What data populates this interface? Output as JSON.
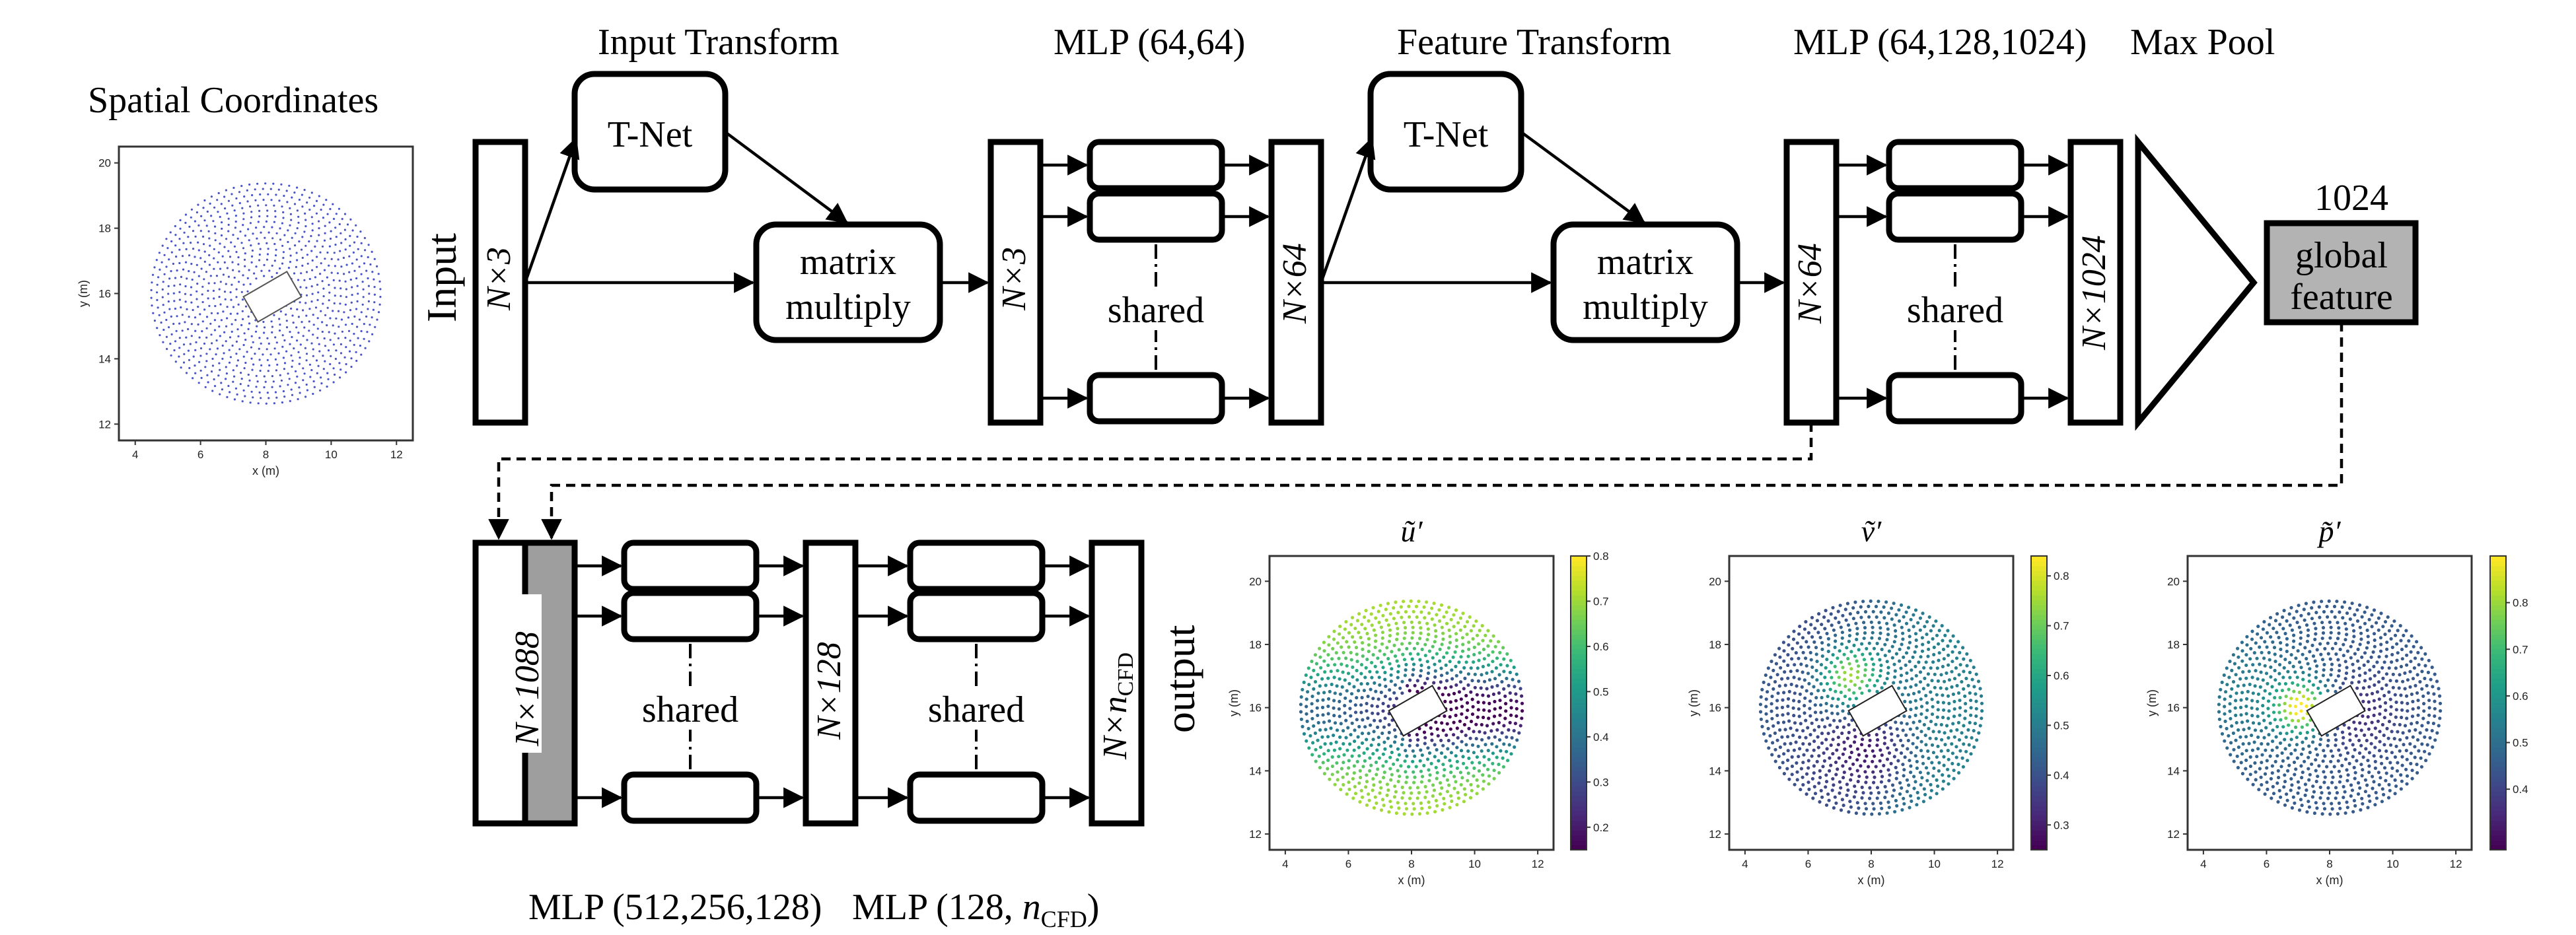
{
  "labels": {
    "spatial_coordinates": "Spatial Coordinates",
    "input": "Input",
    "output": "output",
    "input_transform": "Input Transform",
    "mlp_64_64": "MLP (64,64)",
    "feature_transform": "Feature Transform",
    "mlp_64_128_1024": "MLP (64,128,1024)",
    "max_pool": "Max Pool",
    "dim_1024": "1024",
    "tnet": "T-Net",
    "matrix": "matrix",
    "multiply": "multiply",
    "shared": "shared",
    "global": "global",
    "feature": "feature",
    "mlp_512_256_128": "MLP (512,256,128)",
    "mlp_128_ncfd_prefix": "MLP (128, ",
    "mlp_128_ncfd_var": "n",
    "mlp_128_ncfd_sub": "CFD",
    "mlp_128_ncfd_suffix": ")"
  },
  "dims": {
    "n3_a": "N×3",
    "n3_b": "N×3",
    "n64_a": "N×64",
    "n64_b": "N×64",
    "n1024": "N×1024",
    "n1088": "N×1088",
    "n128": "N×128",
    "nncfd_main": "N×n",
    "nncfd_sub": "CFD"
  },
  "colors": {
    "global_feature_fill": "#b3b3b3",
    "concat_fill": "#9e9e9e",
    "input_points": "#4a55c8",
    "colormap": "viridis"
  },
  "chart_data": [
    {
      "type": "scatter",
      "title": "",
      "xlabel": "x (m)",
      "ylabel": "y (m)",
      "xlim": [
        3.5,
        12.5
      ],
      "ylim": [
        11.5,
        20.5
      ],
      "xticks": [
        4,
        6,
        8,
        10,
        12
      ],
      "yticks": [
        12,
        14,
        16,
        18,
        20
      ],
      "colorbar": null
    },
    {
      "type": "scatter",
      "title": "ũ′",
      "xlabel": "x (m)",
      "ylabel": "y (m)",
      "xlim": [
        3.5,
        12.5
      ],
      "ylim": [
        11.5,
        20.8
      ],
      "xticks": [
        4,
        6,
        8,
        10,
        12
      ],
      "yticks": [
        12,
        14,
        16,
        18,
        20
      ],
      "colorbar": {
        "range": [
          0.15,
          0.8
        ],
        "ticks": [
          "0.2",
          "0.3",
          "0.4",
          "0.5",
          "0.6",
          "0.7",
          "0.8"
        ],
        "cmap": "viridis"
      }
    },
    {
      "type": "scatter",
      "title": "ṽ′",
      "xlabel": "x (m)",
      "ylabel": "y (m)",
      "xlim": [
        3.5,
        12.5
      ],
      "ylim": [
        11.5,
        20.8
      ],
      "xticks": [
        4,
        6,
        8,
        10,
        12
      ],
      "yticks": [
        12,
        14,
        16,
        18,
        20
      ],
      "colorbar": {
        "range": [
          0.25,
          0.84
        ],
        "ticks": [
          "0.3",
          "0.4",
          "0.5",
          "0.6",
          "0.7",
          "0.8"
        ],
        "cmap": "viridis"
      }
    },
    {
      "type": "scatter",
      "title": "p̃′",
      "xlabel": "x (m)",
      "ylabel": "y (m)",
      "xlim": [
        3.5,
        12.5
      ],
      "ylim": [
        11.5,
        20.8
      ],
      "xticks": [
        4,
        6,
        8,
        10,
        12
      ],
      "yticks": [
        12,
        14,
        16,
        18,
        20
      ],
      "colorbar": {
        "range": [
          0.27,
          0.9
        ],
        "ticks": [
          "0.4",
          "0.5",
          "0.6",
          "0.7",
          "0.8"
        ],
        "cmap": "viridis"
      }
    }
  ]
}
